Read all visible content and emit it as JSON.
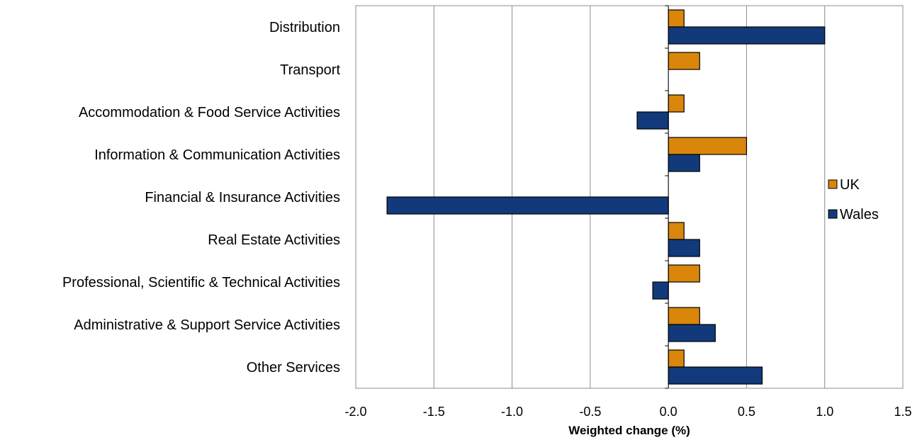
{
  "chart_data": {
    "type": "bar",
    "orientation": "horizontal",
    "title": "",
    "xlabel": "Weighted change (%)",
    "ylabel": "",
    "xlim": [
      -2.0,
      1.5
    ],
    "x_ticks": [
      "-2.0",
      "-1.5",
      "-1.0",
      "-0.5",
      "0.0",
      "0.5",
      "1.0",
      "1.5"
    ],
    "grid": "vertical",
    "legend_position": "right",
    "categories": [
      "Distribution",
      "Transport",
      "Accommodation & Food Service Activities",
      "Information & Communication Activities",
      "Financial & Insurance Activities",
      "Real Estate Activities",
      "Professional, Scientific & Technical Activities",
      "Administrative & Support Service Activities",
      "Other Services"
    ],
    "series": [
      {
        "name": "UK",
        "color": "#D9860A",
        "values": [
          0.1,
          0.2,
          0.1,
          0.5,
          0.0,
          0.1,
          0.2,
          0.2,
          0.1
        ]
      },
      {
        "name": "Wales",
        "color": "#123A7A",
        "values": [
          1.0,
          0.0,
          -0.2,
          0.2,
          -1.8,
          0.2,
          -0.1,
          0.3,
          0.6
        ]
      }
    ]
  }
}
